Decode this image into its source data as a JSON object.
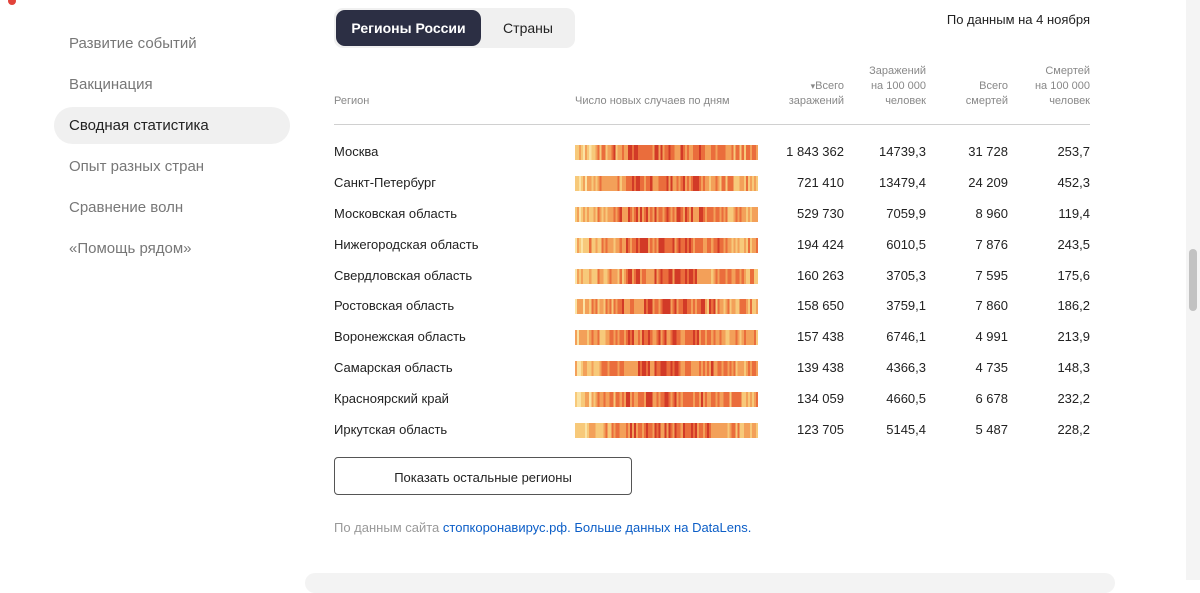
{
  "sidebar": {
    "items": [
      {
        "label": "Развитие событий",
        "active": false
      },
      {
        "label": "Вакцинация",
        "active": false
      },
      {
        "label": "Сводная статистика",
        "active": true
      },
      {
        "label": "Опыт разных стран",
        "active": false
      },
      {
        "label": "Сравнение волн",
        "active": false
      },
      {
        "label": "«Помощь рядом»",
        "active": false
      }
    ]
  },
  "tabs": [
    {
      "label": "Регионы России",
      "active": true
    },
    {
      "label": "Страны",
      "active": false
    }
  ],
  "date_note": "По данным на 4 ноября",
  "table": {
    "headers": {
      "region": "Регион",
      "heatmap": "Число новых случаев по дням",
      "total_cases_arrow": "▾",
      "total_cases_l1": "Всего",
      "total_cases_l2": "заражений",
      "per100k_cases_l1": "Заражений",
      "per100k_cases_l2": "на 100 000",
      "per100k_cases_l3": "человек",
      "total_deaths_l1": "Всего",
      "total_deaths_l2": "смертей",
      "per100k_deaths_l1": "Смертей",
      "per100k_deaths_l2": "на 100 000",
      "per100k_deaths_l3": "человек"
    },
    "rows": [
      {
        "region": "Москва",
        "total_cases": "1 843 362",
        "cases_per_100k": "14739,3",
        "total_deaths": "31 728",
        "deaths_per_100k": "253,7"
      },
      {
        "region": "Санкт-Петербург",
        "total_cases": "721 410",
        "cases_per_100k": "13479,4",
        "total_deaths": "24 209",
        "deaths_per_100k": "452,3"
      },
      {
        "region": "Московская область",
        "total_cases": "529 730",
        "cases_per_100k": "7059,9",
        "total_deaths": "8 960",
        "deaths_per_100k": "119,4"
      },
      {
        "region": "Нижегородская область",
        "total_cases": "194 424",
        "cases_per_100k": "6010,5",
        "total_deaths": "7 876",
        "deaths_per_100k": "243,5"
      },
      {
        "region": "Свердловская область",
        "total_cases": "160 263",
        "cases_per_100k": "3705,3",
        "total_deaths": "7 595",
        "deaths_per_100k": "175,6"
      },
      {
        "region": "Ростовская область",
        "total_cases": "158 650",
        "cases_per_100k": "3759,1",
        "total_deaths": "7 860",
        "deaths_per_100k": "186,2"
      },
      {
        "region": "Воронежская область",
        "total_cases": "157 438",
        "cases_per_100k": "6746,1",
        "total_deaths": "4 991",
        "deaths_per_100k": "213,9"
      },
      {
        "region": "Самарская область",
        "total_cases": "139 438",
        "cases_per_100k": "4366,3",
        "total_deaths": "4 735",
        "deaths_per_100k": "148,3"
      },
      {
        "region": "Красноярский край",
        "total_cases": "134 059",
        "cases_per_100k": "4660,5",
        "total_deaths": "6 678",
        "deaths_per_100k": "232,2"
      },
      {
        "region": "Иркутская область",
        "total_cases": "123 705",
        "cases_per_100k": "5145,4",
        "total_deaths": "5 487",
        "deaths_per_100k": "228,2"
      }
    ]
  },
  "heat_colors": [
    "#fbe3a4",
    "#f7c97a",
    "#f3a059",
    "#ea6d3c",
    "#d23a27",
    "#a8201c"
  ],
  "show_more_label": "Показать остальные регионы",
  "source": {
    "prefix": "По данным сайта",
    "link1": "стопкоронавирус.рф.",
    "link2": "Больше данных на DataLens."
  },
  "icons": {
    "sort_arrow": "sort-desc-icon"
  }
}
